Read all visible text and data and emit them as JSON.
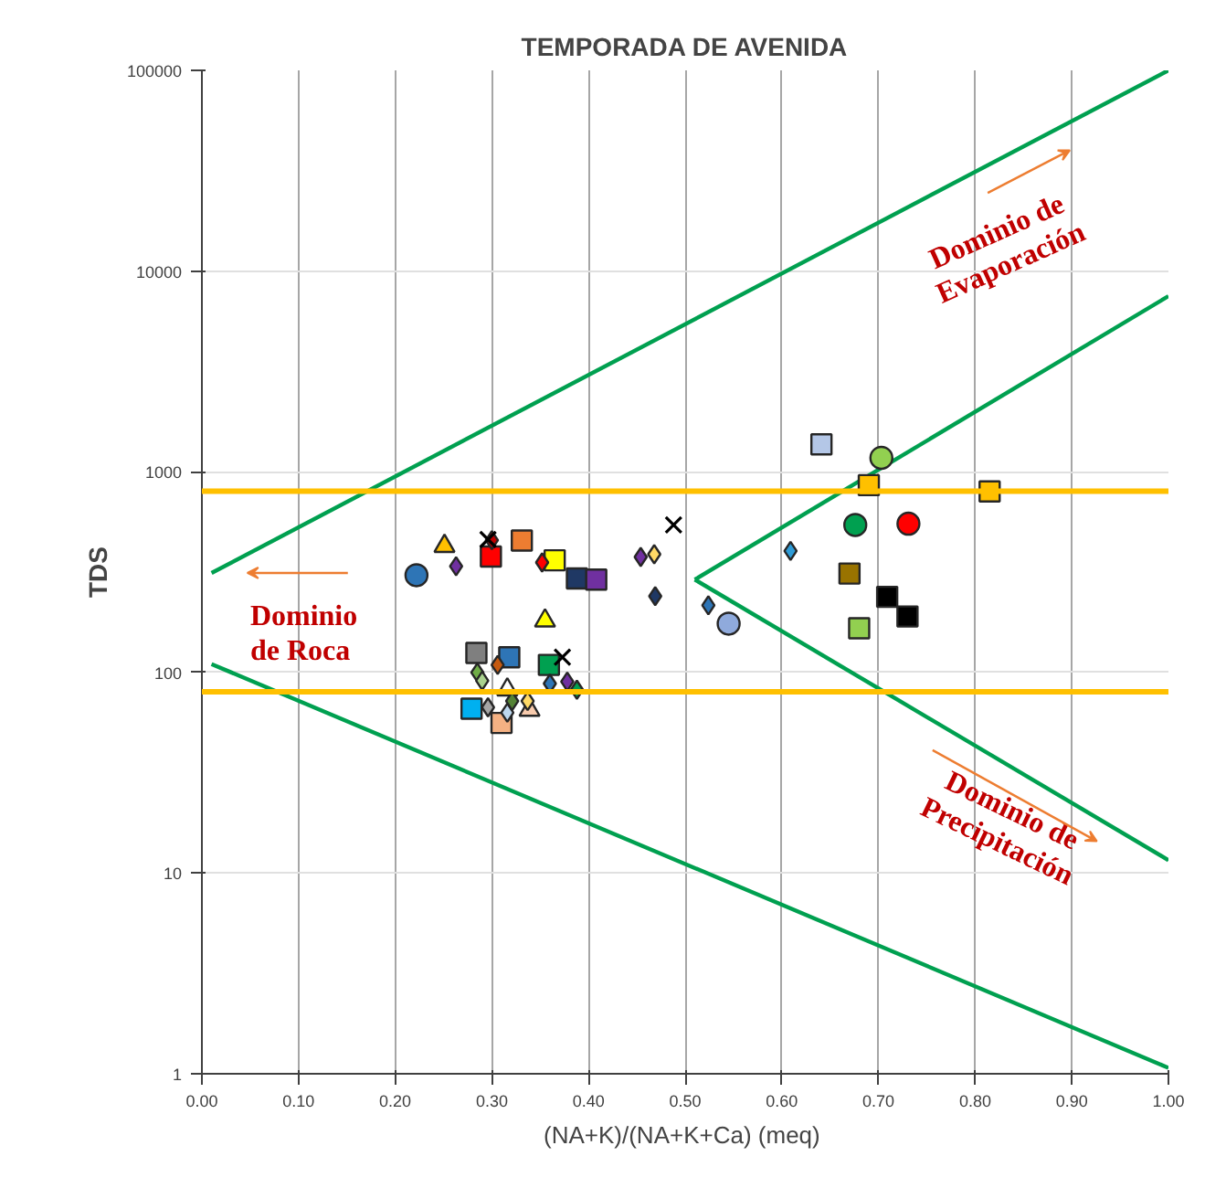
{
  "chart_data": {
    "type": "scatter",
    "title": "TEMPORADA DE AVENIDA",
    "xlabel": "(NA+K)/(NA+K+Ca)  (meq)",
    "ylabel": "TDS",
    "log": "y",
    "grid": true,
    "xlim": [
      0,
      1
    ],
    "ylim": [
      1,
      100000
    ],
    "xticks": [
      {
        "value": 0,
        "label": "0.00"
      },
      {
        "value": 0.1,
        "label": "0.10"
      },
      {
        "value": 0.2,
        "label": "0.20"
      },
      {
        "value": 0.3,
        "label": "0.30"
      },
      {
        "value": 0.4,
        "label": "0.40"
      },
      {
        "value": 0.5,
        "label": "0.50"
      },
      {
        "value": 0.6,
        "label": "0.60"
      },
      {
        "value": 0.7,
        "label": "0.70"
      },
      {
        "value": 0.8,
        "label": "0.80"
      },
      {
        "value": 0.9,
        "label": "0.90"
      },
      {
        "value": 1,
        "label": "1.00"
      }
    ],
    "yticks": [
      1,
      10,
      100,
      1000,
      10000,
      100000
    ],
    "ref_lines": [
      {
        "axis": "y",
        "value": 800,
        "label": null,
        "color": "#ffc000"
      },
      {
        "axis": "y",
        "value": 80,
        "label": null,
        "color": "#ffc000"
      }
    ],
    "annotations": [
      "Dominio de Roca",
      "Dominio de Evaporación",
      "Dominio de Precipitación"
    ],
    "series": [
      {
        "type": "line",
        "color": "#00a050",
        "x": [
          0.01,
          1.0
        ],
        "values": [
          313,
          100000
        ]
      },
      {
        "type": "line",
        "color": "#00a050",
        "x": [
          0.51,
          1.0
        ],
        "values": [
          290,
          7500
        ]
      },
      {
        "type": "line",
        "color": "#00a050",
        "x": [
          0.51,
          1.0
        ],
        "values": [
          290,
          11.6
        ]
      },
      {
        "type": "line",
        "color": "#00a050",
        "x": [
          0.01,
          1.0
        ],
        "values": [
          110,
          1.07
        ]
      },
      {
        "marker": "circle",
        "x": [
          0.222,
          0.545,
          0.703,
          0.676,
          0.731
        ],
        "values": [
          305,
          175,
          1173,
          543,
          551
        ],
        "colors": [
          "#2e75b6",
          "#8faadc",
          "#92d050",
          "#00a050",
          "#ff0000"
        ]
      },
      {
        "marker": "square",
        "x": [
          0.299,
          0.331,
          0.365,
          0.388,
          0.408,
          0.284,
          0.318,
          0.359,
          0.279,
          0.31,
          0.641,
          0.69,
          0.815,
          0.67,
          0.68
        ],
        "values": [
          378,
          454,
          362,
          294,
          290,
          125,
          119,
          109,
          66,
          56,
          1368,
          857,
          798,
          311,
          166
        ],
        "colors": [
          "#ff0000",
          "#ed7d31",
          "#ffff00",
          "#1f3864",
          "#7030a0",
          "#7f7f7f",
          "#2e75b6",
          "#00a050",
          "#00b0f0",
          "#f4b183",
          "#b4c7e7",
          "#ffc000",
          "#ffc000",
          "#997300",
          "#92d050"
        ]
      },
      {
        "marker": "triangle",
        "x": [
          0.251,
          0.355,
          0.316,
          0.339
        ],
        "values": [
          426,
          181,
          82,
          65
        ],
        "colors": [
          "#ffc000",
          "#ffff00",
          "#ffffff",
          "#f8cbad"
        ]
      },
      {
        "marker": "diamond",
        "x": [
          0.263,
          0.3,
          0.352,
          0.454,
          0.468,
          0.469,
          0.524,
          0.306,
          0.285,
          0.29,
          0.36,
          0.378,
          0.388,
          0.316,
          0.337,
          0.321,
          0.609,
          0.296
        ],
        "values": [
          338,
          456,
          353,
          376,
          388,
          240,
          216,
          109,
          100,
          91,
          88,
          90,
          82,
          63,
          72,
          72,
          403,
          67
        ],
        "colors": [
          "#7030a0",
          "#c00000",
          "#ff0000",
          "#7030a0",
          "#ffd966",
          "#1f3864",
          "#2e75b6",
          "#c55a11",
          "#70ad47",
          "#a9d18e",
          "#2e75b6",
          "#7030a0",
          "#00a050",
          "#bdd7ee",
          "#ffd966",
          "#548235",
          "#2e9bd6",
          "#a5a5a5"
        ]
      },
      {
        "marker": "cross",
        "x": [
          0.296,
          0.488,
          0.373
        ],
        "values": [
          460,
          543,
          119
        ],
        "colors": [
          "#000000",
          "#000000",
          "#000000"
        ]
      },
      {
        "marker": "square",
        "x": [
          0.709,
          0.73
        ],
        "values": [
          238,
          190
        ],
        "colors": [
          "#000000",
          "#000000"
        ]
      }
    ]
  }
}
